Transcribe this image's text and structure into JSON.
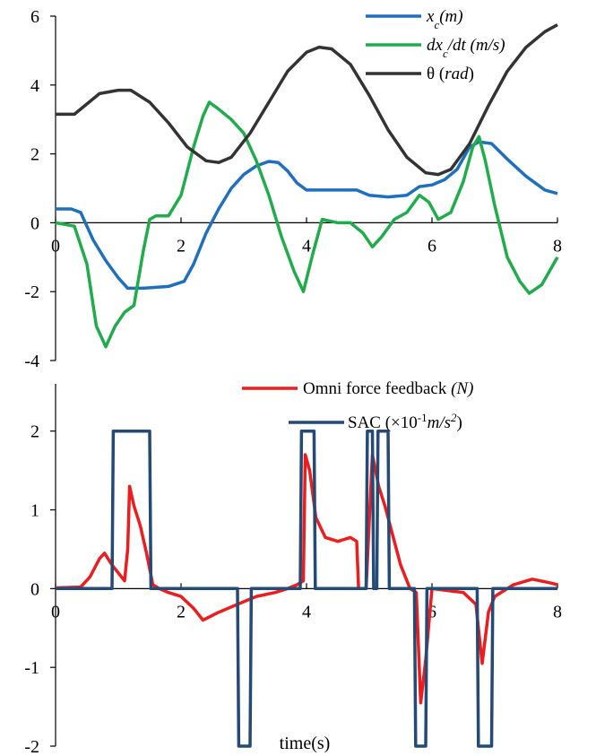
{
  "chart_data": [
    {
      "type": "line",
      "xlim": [
        0,
        8
      ],
      "ylim": [
        -4,
        6
      ],
      "x_ticks": [
        0,
        2,
        4,
        6,
        8
      ],
      "y_ticks": [
        6,
        4,
        2,
        0,
        -2,
        -4
      ],
      "legend_position": "top-right",
      "grid": false,
      "series": [
        {
          "name": "x_c(m)",
          "color": "#1f6fbf",
          "points": [
            [
              0,
              0.4
            ],
            [
              0.25,
              0.4
            ],
            [
              0.4,
              0.3
            ],
            [
              0.6,
              -0.5
            ],
            [
              0.8,
              -1.1
            ],
            [
              1.0,
              -1.6
            ],
            [
              1.15,
              -1.9
            ],
            [
              1.4,
              -1.9
            ],
            [
              1.8,
              -1.85
            ],
            [
              2.05,
              -1.7
            ],
            [
              2.2,
              -1.2
            ],
            [
              2.4,
              -0.3
            ],
            [
              2.6,
              0.4
            ],
            [
              2.8,
              1.0
            ],
            [
              3.0,
              1.4
            ],
            [
              3.2,
              1.65
            ],
            [
              3.4,
              1.78
            ],
            [
              3.55,
              1.75
            ],
            [
              3.7,
              1.5
            ],
            [
              3.85,
              1.15
            ],
            [
              4.0,
              0.95
            ],
            [
              4.3,
              0.95
            ],
            [
              4.6,
              0.95
            ],
            [
              4.8,
              0.95
            ],
            [
              5.0,
              0.8
            ],
            [
              5.3,
              0.75
            ],
            [
              5.6,
              0.8
            ],
            [
              5.8,
              1.05
            ],
            [
              6.0,
              1.1
            ],
            [
              6.2,
              1.25
            ],
            [
              6.4,
              1.55
            ],
            [
              6.6,
              2.2
            ],
            [
              6.75,
              2.35
            ],
            [
              6.95,
              2.3
            ],
            [
              7.2,
              1.85
            ],
            [
              7.5,
              1.35
            ],
            [
              7.8,
              0.95
            ],
            [
              8.0,
              0.85
            ]
          ]
        },
        {
          "name": "dx_c/dt (m/s)",
          "color": "#1fad4b",
          "points": [
            [
              0,
              0.0
            ],
            [
              0.3,
              -0.1
            ],
            [
              0.5,
              -1.2
            ],
            [
              0.65,
              -3.0
            ],
            [
              0.8,
              -3.6
            ],
            [
              0.95,
              -3.0
            ],
            [
              1.1,
              -2.6
            ],
            [
              1.25,
              -2.4
            ],
            [
              1.4,
              -0.8
            ],
            [
              1.5,
              0.1
            ],
            [
              1.6,
              0.2
            ],
            [
              1.8,
              0.2
            ],
            [
              2.0,
              0.8
            ],
            [
              2.2,
              2.2
            ],
            [
              2.35,
              3.1
            ],
            [
              2.45,
              3.5
            ],
            [
              2.6,
              3.3
            ],
            [
              2.8,
              3.0
            ],
            [
              3.0,
              2.6
            ],
            [
              3.2,
              1.8
            ],
            [
              3.4,
              0.8
            ],
            [
              3.6,
              -0.4
            ],
            [
              3.8,
              -1.4
            ],
            [
              3.95,
              -2.0
            ],
            [
              4.1,
              -0.9
            ],
            [
              4.25,
              0.1
            ],
            [
              4.5,
              0.0
            ],
            [
              4.7,
              0.0
            ],
            [
              4.9,
              -0.3
            ],
            [
              5.05,
              -0.7
            ],
            [
              5.2,
              -0.4
            ],
            [
              5.4,
              0.1
            ],
            [
              5.6,
              0.3
            ],
            [
              5.8,
              0.8
            ],
            [
              5.95,
              0.6
            ],
            [
              6.1,
              0.1
            ],
            [
              6.3,
              0.3
            ],
            [
              6.5,
              1.2
            ],
            [
              6.65,
              2.2
            ],
            [
              6.75,
              2.5
            ],
            [
              6.85,
              1.8
            ],
            [
              7.0,
              0.5
            ],
            [
              7.2,
              -1.0
            ],
            [
              7.4,
              -1.7
            ],
            [
              7.55,
              -2.05
            ],
            [
              7.75,
              -1.8
            ],
            [
              8.0,
              -1.0
            ]
          ]
        },
        {
          "name": "θ (rad)",
          "color": "#333333",
          "points": [
            [
              0,
              3.15
            ],
            [
              0.3,
              3.15
            ],
            [
              0.5,
              3.45
            ],
            [
              0.7,
              3.75
            ],
            [
              1.0,
              3.85
            ],
            [
              1.2,
              3.85
            ],
            [
              1.5,
              3.5
            ],
            [
              1.8,
              2.9
            ],
            [
              2.1,
              2.2
            ],
            [
              2.4,
              1.8
            ],
            [
              2.6,
              1.75
            ],
            [
              2.8,
              1.9
            ],
            [
              3.1,
              2.6
            ],
            [
              3.4,
              3.5
            ],
            [
              3.7,
              4.4
            ],
            [
              4.0,
              4.95
            ],
            [
              4.2,
              5.1
            ],
            [
              4.4,
              5.05
            ],
            [
              4.7,
              4.6
            ],
            [
              5.0,
              3.7
            ],
            [
              5.3,
              2.7
            ],
            [
              5.6,
              1.9
            ],
            [
              5.9,
              1.45
            ],
            [
              6.1,
              1.4
            ],
            [
              6.3,
              1.55
            ],
            [
              6.6,
              2.3
            ],
            [
              6.9,
              3.4
            ],
            [
              7.2,
              4.4
            ],
            [
              7.5,
              5.1
            ],
            [
              7.8,
              5.55
            ],
            [
              8.0,
              5.75
            ]
          ]
        }
      ]
    },
    {
      "type": "line",
      "xlim": [
        0,
        8
      ],
      "ylim": [
        -2,
        2.6
      ],
      "x_ticks": [
        0,
        2,
        4,
        6,
        8
      ],
      "y_ticks": [
        2,
        1,
        0,
        -1,
        -2
      ],
      "xlabel": "time(s)",
      "legend_position": "top-right",
      "grid": false,
      "series": [
        {
          "name": "Omni force feedback (N)",
          "color": "#ee1c1c",
          "points": [
            [
              0,
              0.01
            ],
            [
              0.4,
              0.02
            ],
            [
              0.55,
              0.15
            ],
            [
              0.7,
              0.38
            ],
            [
              0.78,
              0.45
            ],
            [
              0.9,
              0.3
            ],
            [
              1.0,
              0.2
            ],
            [
              1.1,
              0.1
            ],
            [
              1.15,
              0.5
            ],
            [
              1.18,
              1.3
            ],
            [
              1.25,
              1.05
            ],
            [
              1.35,
              0.8
            ],
            [
              1.45,
              0.45
            ],
            [
              1.55,
              0.05
            ],
            [
              1.65,
              0.0
            ],
            [
              1.8,
              -0.05
            ],
            [
              2.0,
              -0.1
            ],
            [
              2.2,
              -0.25
            ],
            [
              2.35,
              -0.4
            ],
            [
              2.6,
              -0.3
            ],
            [
              2.9,
              -0.2
            ],
            [
              3.2,
              -0.1
            ],
            [
              3.5,
              -0.05
            ],
            [
              3.7,
              0.0
            ],
            [
              3.85,
              0.05
            ],
            [
              3.95,
              0.1
            ],
            [
              3.98,
              1.7
            ],
            [
              4.05,
              1.5
            ],
            [
              4.15,
              0.9
            ],
            [
              4.3,
              0.65
            ],
            [
              4.5,
              0.6
            ],
            [
              4.7,
              0.65
            ],
            [
              4.8,
              0.6
            ],
            [
              4.83,
              0.0
            ],
            [
              4.95,
              0.0
            ],
            [
              5.05,
              1.7
            ],
            [
              5.15,
              1.3
            ],
            [
              5.25,
              1.05
            ],
            [
              5.4,
              0.6
            ],
            [
              5.5,
              0.3
            ],
            [
              5.65,
              0.0
            ],
            [
              5.75,
              -0.05
            ],
            [
              5.82,
              -1.45
            ],
            [
              5.9,
              -0.9
            ],
            [
              6.0,
              0.0
            ],
            [
              6.2,
              -0.02
            ],
            [
              6.5,
              -0.05
            ],
            [
              6.7,
              -0.2
            ],
            [
              6.8,
              -0.95
            ],
            [
              6.9,
              -0.3
            ],
            [
              7.0,
              -0.1
            ],
            [
              7.3,
              0.05
            ],
            [
              7.6,
              0.12
            ],
            [
              7.9,
              0.07
            ],
            [
              8.0,
              0.05
            ]
          ]
        },
        {
          "name": "SAC (×10⁻¹m/s²)",
          "color": "#244a78",
          "points": [
            [
              0,
              0
            ],
            [
              0.9,
              0
            ],
            [
              0.92,
              2
            ],
            [
              1.5,
              2
            ],
            [
              1.52,
              0
            ],
            [
              2.9,
              0
            ],
            [
              2.92,
              -2
            ],
            [
              3.1,
              -2
            ],
            [
              3.12,
              0
            ],
            [
              3.9,
              0
            ],
            [
              3.92,
              2
            ],
            [
              4.12,
              2
            ],
            [
              4.14,
              0
            ],
            [
              4.95,
              0
            ],
            [
              4.97,
              2
            ],
            [
              5.05,
              2
            ],
            [
              5.07,
              0
            ],
            [
              5.12,
              0
            ],
            [
              5.14,
              2
            ],
            [
              5.3,
              2
            ],
            [
              5.32,
              0
            ],
            [
              5.72,
              0
            ],
            [
              5.74,
              -2
            ],
            [
              5.9,
              -2
            ],
            [
              5.92,
              0
            ],
            [
              6.72,
              0
            ],
            [
              6.74,
              -2
            ],
            [
              6.95,
              -2
            ],
            [
              6.97,
              0
            ],
            [
              8.0,
              0
            ]
          ]
        }
      ]
    }
  ]
}
